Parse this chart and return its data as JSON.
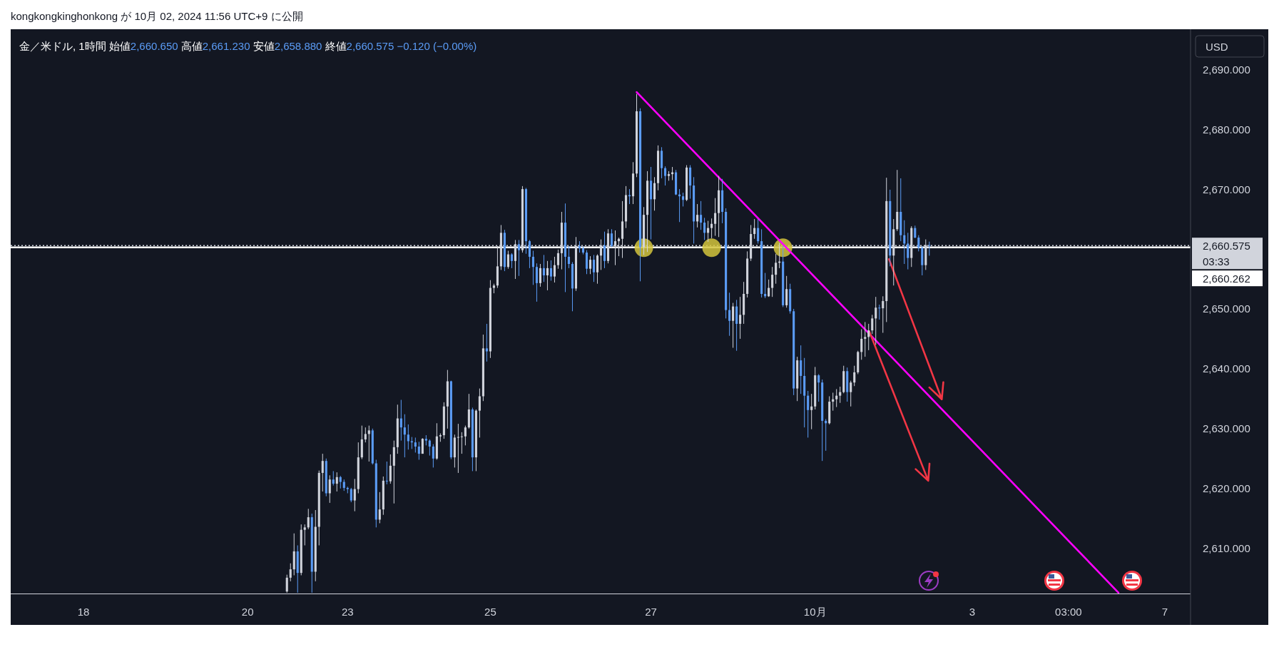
{
  "chart_data": {
    "type": "candlestick",
    "title": "金／米ドル, 1時間  始値2,660.650  高値2,661.230  安値2,658.880  終値2,660.575  −0.120 (−0.00%)",
    "ylabel": "USD",
    "annotations": [
      "kongkongkinghonkong が 10月 02, 2024 11:56 UTC+9 に公開",
      "03:33"
    ],
    "categories": [
      "18",
      null,
      null,
      null,
      null,
      null,
      null,
      null,
      null,
      null,
      null,
      null,
      null,
      null,
      null,
      null,
      null,
      null,
      null,
      null,
      null,
      null,
      null,
      null,
      null,
      null,
      null,
      null,
      null,
      null,
      null,
      null,
      null,
      null,
      null,
      null,
      null,
      null,
      null,
      null,
      null,
      null,
      null,
      null,
      null,
      null,
      "20",
      null,
      null,
      null,
      null,
      null,
      null,
      null,
      null,
      null,
      null,
      null,
      null,
      null,
      null,
      null,
      null,
      null,
      null,
      null,
      null,
      null,
      null,
      null,
      null,
      null,
      null,
      null,
      "23",
      null,
      null,
      null,
      null,
      null,
      null,
      null,
      null,
      null,
      null,
      null,
      null,
      null,
      null,
      null,
      null,
      null,
      null,
      null,
      null,
      null,
      null,
      null,
      null,
      null,
      null,
      null,
      null,
      null,
      null,
      null,
      null,
      null,
      null,
      null,
      null,
      null,
      null,
      null,
      "25",
      null,
      null,
      null,
      null,
      null,
      null,
      null,
      null,
      null,
      null,
      null,
      null,
      null,
      null,
      null,
      null,
      null,
      null,
      null,
      null,
      null,
      null,
      null,
      null,
      null,
      null,
      null,
      null,
      null,
      null,
      null,
      null,
      null,
      null,
      null,
      null,
      null,
      null,
      null,
      null,
      null,
      null,
      null,
      null,
      "27",
      null,
      null,
      null,
      null,
      null,
      null,
      null,
      null,
      null,
      null,
      null,
      null,
      null,
      null,
      null,
      null,
      null,
      null,
      null,
      null,
      null,
      null,
      null,
      null,
      null,
      null,
      null,
      null,
      null,
      null,
      null,
      null,
      null,
      null,
      null,
      null,
      null,
      null,
      null,
      null,
      null,
      null,
      null,
      null,
      null,
      "10月",
      null,
      null,
      null,
      null,
      null,
      null,
      null,
      null,
      null,
      null,
      null,
      null,
      null,
      null,
      null,
      null,
      null,
      null,
      null,
      null,
      null,
      null,
      null,
      null,
      null,
      null,
      null,
      null,
      null,
      null,
      null,
      null,
      null,
      null,
      null,
      null,
      null,
      null,
      null,
      null,
      null,
      null,
      null,
      "3",
      null,
      null,
      null,
      null,
      null,
      null,
      null,
      null,
      null,
      null,
      null,
      null,
      null,
      null,
      null,
      null,
      null,
      null,
      null,
      null,
      null,
      null,
      null,
      null,
      null,
      null,
      "03:00",
      null,
      null,
      null,
      null,
      null,
      null,
      null,
      null,
      null,
      null,
      null,
      null,
      null,
      null,
      null,
      null,
      null,
      null,
      null,
      null,
      null,
      null,
      null,
      null,
      null,
      null,
      "7"
    ],
    "ylim": [
      2602.4,
      2696.4
    ],
    "yticks": [
      {
        "value": 2610,
        "label": "2,610.000"
      },
      {
        "value": 2620,
        "label": "2,620.000"
      },
      {
        "value": 2630,
        "label": "2,630.000"
      },
      {
        "value": 2640,
        "label": "2,640.000"
      },
      {
        "value": 2650,
        "label": "2,650.000"
      },
      {
        "value": 2670,
        "label": "2,670.000"
      },
      {
        "value": 2680,
        "label": "2,680.000"
      },
      {
        "value": 2690,
        "label": "2,690.000"
      }
    ],
    "ref_lines": [
      {
        "axis": "y",
        "value": 2660.575,
        "label": "2,660.575",
        "color": "#d1d4dc",
        "line_style": "dotted"
      },
      {
        "axis": "y",
        "value": 2660.262,
        "label": "2,660.262",
        "color": "#ffffff",
        "line_style": "solid"
      }
    ],
    "series": [
      {
        "type": "line",
        "color": "#ff00ff",
        "line_style": "solid",
        "values": [
          null,
          null,
          null,
          null,
          null,
          null,
          null,
          null,
          null,
          null,
          null,
          null,
          null,
          null,
          null,
          null,
          null,
          null,
          null,
          null,
          null,
          null,
          null,
          null,
          null,
          null,
          null,
          null,
          null,
          null,
          null,
          null,
          null,
          null,
          null,
          null,
          null,
          null,
          null,
          null,
          null,
          null,
          null,
          null,
          null,
          null,
          null,
          null,
          null,
          null,
          null,
          null,
          null,
          null,
          null,
          null,
          null,
          null,
          null,
          null,
          null,
          null,
          null,
          null,
          null,
          null,
          null,
          null,
          null,
          null,
          null,
          null,
          null,
          null,
          null,
          null,
          null,
          null,
          null,
          null,
          null,
          null,
          null,
          null,
          null,
          null,
          null,
          null,
          null,
          null,
          null,
          null,
          null,
          null,
          null,
          null,
          null,
          null,
          null,
          null,
          null,
          null,
          null,
          null,
          null,
          null,
          null,
          null,
          null,
          null,
          null,
          null,
          null,
          null,
          null,
          null,
          null,
          null,
          null,
          null,
          null,
          null,
          null,
          null,
          null,
          null,
          null,
          null,
          null,
          null,
          null,
          null,
          null,
          null,
          null,
          null,
          null,
          null,
          null,
          null,
          null,
          null,
          null,
          null,
          null,
          null,
          null,
          null,
          null,
          null,
          null,
          null,
          null,
          null,
          null,
          2686.2,
          null,
          null,
          null,
          null,
          null,
          null,
          null,
          null,
          null,
          null,
          null,
          null,
          null,
          null,
          null,
          null,
          null,
          null,
          null,
          null,
          null,
          null,
          null,
          null,
          null,
          null,
          null,
          null,
          null,
          null,
          null,
          null,
          null,
          null,
          null,
          null,
          null,
          null,
          null,
          null,
          null,
          null,
          null,
          null,
          null,
          null,
          null,
          null,
          null,
          null,
          null,
          null,
          null,
          null,
          null,
          null,
          null,
          null,
          null,
          null,
          null,
          null,
          null,
          null,
          null,
          null,
          null,
          null,
          null,
          null,
          null,
          null,
          null,
          null,
          null,
          null,
          null,
          null,
          null,
          null,
          null,
          null,
          null,
          null,
          null,
          null,
          null,
          null,
          null,
          null,
          null,
          null,
          null,
          null,
          null,
          null,
          null,
          null,
          null,
          null,
          null,
          null,
          null,
          null,
          null,
          null,
          null,
          null,
          null,
          null,
          null,
          null,
          null,
          null,
          null,
          null,
          null,
          null,
          null,
          null,
          null,
          null,
          null,
          null,
          null,
          null,
          null,
          null,
          null,
          null,
          null,
          null,
          null,
          null,
          2602.6,
          null,
          null,
          null,
          null,
          null,
          null,
          null,
          null,
          null,
          null,
          null,
          null,
          null
        ]
      },
      {
        "type": "scatter",
        "color": "#d4c43c",
        "marker": "circle",
        "values": [
          null,
          null,
          null,
          null,
          null,
          null,
          null,
          null,
          null,
          null,
          null,
          null,
          null,
          null,
          null,
          null,
          null,
          null,
          null,
          null,
          null,
          null,
          null,
          null,
          null,
          null,
          null,
          null,
          null,
          null,
          null,
          null,
          null,
          null,
          null,
          null,
          null,
          null,
          null,
          null,
          null,
          null,
          null,
          null,
          null,
          null,
          null,
          null,
          null,
          null,
          null,
          null,
          null,
          null,
          null,
          null,
          null,
          null,
          null,
          null,
          null,
          null,
          null,
          null,
          null,
          null,
          null,
          null,
          null,
          null,
          null,
          null,
          null,
          null,
          null,
          null,
          null,
          null,
          null,
          null,
          null,
          null,
          null,
          null,
          null,
          null,
          null,
          null,
          null,
          null,
          null,
          null,
          null,
          null,
          null,
          null,
          null,
          null,
          null,
          null,
          null,
          null,
          null,
          null,
          null,
          null,
          null,
          null,
          null,
          null,
          null,
          null,
          null,
          null,
          null,
          null,
          null,
          null,
          null,
          null,
          null,
          null,
          null,
          null,
          null,
          null,
          null,
          null,
          null,
          null,
          null,
          null,
          null,
          null,
          null,
          null,
          null,
          null,
          null,
          null,
          null,
          null,
          null,
          null,
          null,
          null,
          null,
          null,
          null,
          null,
          null,
          null,
          null,
          null,
          null,
          null,
          null,
          2660.2,
          null,
          null,
          null,
          null,
          null,
          null,
          null,
          null,
          null,
          null,
          null,
          null,
          null,
          null,
          null,
          null,
          null,
          null,
          2660.2,
          null,
          null,
          null,
          null,
          null,
          null,
          null,
          null,
          null,
          null,
          null,
          null,
          null,
          null,
          null,
          null,
          null,
          null,
          null,
          2660.2,
          null,
          null,
          null,
          null,
          null,
          null,
          null,
          null,
          null,
          null,
          null,
          null,
          null,
          null,
          null,
          null,
          null,
          null,
          null,
          null,
          null,
          null,
          null,
          null,
          null,
          null,
          null,
          null,
          null,
          null,
          null,
          null,
          null,
          null,
          null,
          null,
          null,
          null,
          null,
          null,
          null,
          null,
          null,
          null,
          null,
          null,
          null,
          null,
          null,
          null,
          null,
          null,
          null,
          null,
          null,
          null,
          null,
          null,
          null,
          null,
          null,
          null,
          null,
          null,
          null,
          null,
          null,
          null,
          null,
          null,
          null,
          null,
          null,
          null,
          null,
          null,
          null,
          null,
          null,
          null,
          null,
          null,
          null,
          null,
          null,
          null,
          null,
          null,
          null,
          null,
          null,
          null,
          null,
          null,
          null,
          null,
          null,
          null,
          null,
          null,
          null,
          null,
          null,
          null,
          null,
          null,
          null
        ]
      }
    ],
    "colors": [
      null,
      null,
      null,
      null,
      null,
      null,
      null,
      null,
      null,
      null,
      null,
      null,
      null,
      null,
      null,
      null,
      null,
      null,
      null,
      null,
      null,
      null,
      null,
      null,
      null,
      null,
      null,
      null,
      null,
      null,
      null,
      null,
      null,
      null,
      null,
      null,
      null,
      null,
      null,
      null,
      null,
      null,
      null,
      null,
      null,
      null,
      null,
      null,
      null,
      null,
      null,
      null,
      null,
      null,
      null,
      null,
      null,
      "#d1d4dc",
      "#d1d4dc",
      "#d1d4dc",
      "#5b9cf6",
      "#d1d4dc",
      "#d1d4dc",
      "#d1d4dc",
      "#5b9cf6",
      "#d1d4dc",
      "#d1d4dc",
      "#d1d4dc",
      "#5b9cf6",
      "#d1d4dc",
      "#5b9cf6",
      "#d1d4dc",
      "#5b9cf6",
      "#5b9cf6",
      "#5b9cf6",
      "#5b9cf6",
      "#d1d4dc",
      "#d1d4dc",
      "#d1d4dc",
      "#d1d4dc",
      "#d1d4dc",
      "#5b9cf6",
      "#5b9cf6",
      "#d1d4dc",
      "#d1d4dc",
      "#5b9cf6",
      "#d1d4dc",
      "#d1d4dc",
      "#d1d4dc",
      "#5b9cf6",
      "#5b9cf6",
      "#5b9cf6",
      "#5b9cf6",
      "#5b9cf6",
      "#5b9cf6",
      "#d1d4dc",
      "#5b9cf6",
      "#5b9cf6",
      "#5b9cf6",
      "#d1d4dc",
      "#d1d4dc",
      "#d1d4dc",
      "#d1d4dc",
      "#5b9cf6",
      "#d1d4dc",
      "#d1d4dc",
      "#d1d4dc",
      "#d1d4dc",
      "#d1d4dc",
      "#5b9cf6",
      "#d1d4dc",
      "#d1d4dc",
      "#d1d4dc",
      "#5b9cf6",
      "#d1d4dc",
      "#d1d4dc",
      "#d1d4dc",
      "#d1d4dc",
      "#5b9cf6",
      "#d1d4dc",
      "#5b9cf6",
      "#d1d4dc",
      "#5b9cf6",
      "#d1d4dc",
      "#5b9cf6",
      "#5b9cf6",
      "#5b9cf6",
      "#5b9cf6",
      "#d1d4dc",
      "#5b9cf6",
      "#d1d4dc",
      "#5b9cf6",
      "#d1d4dc",
      "#d1d4dc",
      "#d1d4dc",
      "#5b9cf6",
      "#5b9cf6",
      "#5b9cf6",
      "#d1d4dc",
      "#5b9cf6",
      "#5b9cf6",
      "#5b9cf6",
      "#d1d4dc",
      "#5b9cf6",
      "#d1d4dc",
      "#d1d4dc",
      "#5b9cf6",
      "#d1d4dc",
      "#5b9cf6",
      "#d1d4dc",
      "#d1d4dc",
      "#d1d4dc",
      "#d1d4dc",
      "#5b9cf6",
      "#d1d4dc",
      "#d1d4dc",
      "#5b9cf6",
      "#d1d4dc",
      "#d1d4dc",
      "#5b9cf6",
      "#d1d4dc",
      "#d1d4dc",
      "#5b9cf6",
      "#5b9cf6",
      "#d1d4dc",
      "#d1d4dc",
      "#5b9cf6",
      "#5b9cf6",
      "#5b9cf6",
      "#d1d4dc",
      "#5b9cf6",
      "#5b9cf6",
      "#d1d4dc",
      "#5b9cf6",
      "#5b9cf6",
      "#d1d4dc",
      "#d1d4dc",
      "#d1d4dc",
      "#d1d4dc",
      "#5b9cf6",
      "#5b9cf6",
      "#5b9cf6",
      "#d1d4dc",
      "#5b9cf6",
      "#d1d4dc",
      "#d1d4dc",
      "#d1d4dc",
      "#d1d4dc",
      "#d1d4dc",
      "#5b9cf6",
      "#5b9cf6",
      "#5b9cf6",
      "#d1d4dc",
      "#d1d4dc",
      "#d1d4dc",
      "#d1d4dc",
      "#5b9cf6",
      "#d1d4dc",
      "#5b9cf6",
      "#5b9cf6",
      "#d1d4dc",
      "#5b9cf6",
      "#5b9cf6",
      "#5b9cf6",
      "#d1d4dc",
      "#d1d4dc",
      "#5b9cf6",
      "#5b9cf6",
      "#5b9cf6",
      "#d1d4dc",
      "#d1d4dc",
      "#d1d4dc",
      "#d1d4dc",
      "#d1d4dc",
      "#5b9cf6",
      "#d1d4dc",
      "#d1d4dc",
      "#d1d4dc",
      "#d1d4dc",
      "#d1d4dc",
      "#d1d4dc",
      "#d1d4dc",
      "#d1d4dc",
      "#5b9cf6",
      "#d1d4dc",
      "#d1d4dc",
      "#5b9cf6",
      "#d1d4dc",
      "#d1d4dc",
      "#5b9cf6",
      "#5b9cf6",
      "#5b9cf6",
      "#d1d4dc",
      "#5b9cf6",
      "#5b9cf6",
      "#5b9cf6",
      "#d1d4dc",
      "#5b9cf6",
      null,
      null,
      null,
      null,
      null,
      null,
      null,
      null,
      null,
      null,
      null,
      null,
      null,
      null,
      null,
      null,
      null,
      null,
      null,
      null,
      null,
      null,
      null,
      null,
      null,
      null,
      null,
      null,
      null,
      null,
      null,
      null,
      null,
      null,
      null,
      null,
      null,
      null,
      null,
      null,
      null,
      null,
      null,
      null,
      null,
      null,
      null,
      null,
      null,
      null,
      null,
      null,
      null,
      null,
      null,
      null,
      null,
      null,
      null,
      null,
      null,
      null,
      null,
      null,
      null,
      null
    ],
    "ohlc": [
      null,
      null,
      null,
      null,
      null,
      null,
      null,
      null,
      null,
      null,
      null,
      null,
      null,
      null,
      null,
      null,
      null,
      null,
      null,
      null,
      null,
      null,
      null,
      null,
      null,
      null,
      null,
      null,
      null,
      null,
      null,
      null,
      null,
      null,
      null,
      null,
      null,
      null,
      null,
      null,
      null,
      null,
      null,
      null,
      null,
      null,
      null,
      null,
      null,
      null,
      null,
      null,
      null,
      null,
      null,
      null,
      null,
      [
        2602.8,
        2605.6,
        2602.6,
        2605.1
      ],
      [
        2605.1,
        2607.5,
        2604.5,
        2606.5
      ],
      [
        2606.5,
        2612.5,
        2605.5,
        2609.5
      ],
      [
        2609.5,
        2610.5,
        2602.6,
        2605.9
      ],
      [
        2605.9,
        2614,
        2605.5,
        2613.1
      ],
      [
        2613.1,
        2614,
        2610.5,
        2613.5
      ],
      [
        2613.5,
        2616.6,
        2613.2,
        2615.2
      ],
      [
        2615.2,
        2615.8,
        2602.6,
        2606.1
      ],
      [
        2606.1,
        2616.4,
        2604.5,
        2613.6
      ],
      [
        2613.6,
        2623,
        2610.5,
        2622.6
      ],
      [
        2622.6,
        2625.8,
        2619.5,
        2624.6
      ],
      [
        2624.6,
        2625,
        2618.7,
        2619.2
      ],
      [
        2619.2,
        2622.2,
        2617.6,
        2621.5
      ],
      [
        2621.5,
        2622.9,
        2620.5,
        2620.8
      ],
      [
        2620.8,
        2622.7,
        2619.5,
        2621.9
      ],
      [
        2621.9,
        2622.1,
        2620,
        2621.1
      ],
      [
        2621.1,
        2621.5,
        2619.6,
        2620.1
      ],
      [
        2620.1,
        2620.3,
        2619.2,
        2619.9
      ],
      [
        2619.9,
        2620.1,
        2617.7,
        2618
      ],
      [
        2618,
        2621.6,
        2616.2,
        2619.9
      ],
      [
        2619.9,
        2627.7,
        2619.2,
        2625.2
      ],
      [
        2625.2,
        2630.5,
        2624.9,
        2628.2
      ],
      [
        2628.2,
        2630.2,
        2627.7,
        2629.1
      ],
      [
        2629.1,
        2630.5,
        2624.5,
        2629.7
      ],
      [
        2629.7,
        2630,
        2624,
        2624.2
      ],
      [
        2624.2,
        2624.8,
        2613.5,
        2614.8
      ],
      [
        2614.8,
        2619.4,
        2614.2,
        2616.5
      ],
      [
        2616.5,
        2622,
        2615.6,
        2621.3
      ],
      [
        2621.3,
        2624.5,
        2620.7,
        2621.2
      ],
      [
        2621.2,
        2625.7,
        2620.8,
        2623.8
      ],
      [
        2623.8,
        2628,
        2617.5,
        2626.9
      ],
      [
        2626.9,
        2634,
        2625.8,
        2631.7
      ],
      [
        2631.7,
        2634.8,
        2628,
        2630.2
      ],
      [
        2630.2,
        2632.4,
        2625.2,
        2629
      ],
      [
        2629,
        2630.7,
        2626.5,
        2627.9
      ],
      [
        2627.9,
        2628.6,
        2626.6,
        2627.7
      ],
      [
        2627.7,
        2628.5,
        2626,
        2627
      ],
      [
        2627,
        2627.8,
        2624.8,
        2625.8
      ],
      [
        2625.8,
        2628.4,
        2625.8,
        2628.3
      ],
      [
        2628.3,
        2628.9,
        2627.2,
        2628
      ],
      [
        2628,
        2628.2,
        2625.5,
        2627
      ],
      [
        2627,
        2627.4,
        2623.5,
        2625
      ],
      [
        2625,
        2630.9,
        2624.8,
        2628.7
      ],
      [
        2628.7,
        2629.2,
        2627.8,
        2628.9
      ],
      [
        2628.9,
        2634.4,
        2628.3,
        2633.7
      ],
      [
        2633.7,
        2639.8,
        2630,
        2637.9
      ],
      [
        2637.9,
        2638,
        2624.9,
        2625.2
      ],
      [
        2625.2,
        2629,
        2623.5,
        2628.5
      ],
      [
        2628.5,
        2630.8,
        2622.6,
        2628.6
      ],
      [
        2628.6,
        2629.4,
        2625.8,
        2628.7
      ],
      [
        2628.7,
        2630.5,
        2627.2,
        2630.2
      ],
      [
        2630.2,
        2635.8,
        2630,
        2633.2
      ],
      [
        2633.2,
        2633.5,
        2622.9,
        2625.2
      ],
      [
        2625.2,
        2633.2,
        2622.9,
        2633
      ],
      [
        2633,
        2636.7,
        2628.5,
        2635.4
      ],
      [
        2635.4,
        2645.7,
        2634.6,
        2643.4
      ],
      [
        2643.4,
        2647.5,
        2641.2,
        2642.9
      ],
      [
        2642.9,
        2654.8,
        2641.8,
        2653.5
      ],
      [
        2653.5,
        2654.2,
        2652.6,
        2653.9
      ],
      [
        2653.9,
        2660.5,
        2653.5,
        2657.1
      ],
      [
        2657.1,
        2664,
        2656.5,
        2662.7
      ],
      [
        2662.7,
        2663.2,
        2656.3,
        2657
      ],
      [
        2657,
        2659.7,
        2656.7,
        2659.1
      ],
      [
        2659.1,
        2659.3,
        2656.8,
        2658
      ],
      [
        2658,
        2661.5,
        2655,
        2660.8
      ],
      [
        2660.8,
        2661.5,
        2655.5,
        2659.8
      ],
      [
        2659.8,
        2670.5,
        2659.4,
        2670
      ],
      [
        2670,
        2670.2,
        2659.2,
        2661.3
      ],
      [
        2661.3,
        2661.5,
        2656.8,
        2658.7
      ],
      [
        2658.7,
        2659.7,
        2654,
        2657
      ],
      [
        2657,
        2657.6,
        2651.2,
        2654.3
      ],
      [
        2654.3,
        2657.5,
        2653.7,
        2656.8
      ],
      [
        2656.8,
        2659,
        2654.5,
        2655.6
      ],
      [
        2655.6,
        2658,
        2653.1,
        2656.8
      ],
      [
        2656.8,
        2658.1,
        2654.7,
        2655.4
      ],
      [
        2655.4,
        2658.7,
        2654.4,
        2657.3
      ],
      [
        2657.3,
        2659.9,
        2656.7,
        2659.3
      ],
      [
        2659.3,
        2666.2,
        2656.6,
        2664.4
      ],
      [
        2664.4,
        2667.6,
        2652.8,
        2658.7
      ],
      [
        2658.7,
        2660.5,
        2656.8,
        2657.5
      ],
      [
        2657.5,
        2657.8,
        2649.6,
        2653.4
      ],
      [
        2653.4,
        2662,
        2653,
        2660.5
      ],
      [
        2660.5,
        2661.3,
        2659.4,
        2660.1
      ],
      [
        2660.1,
        2660.4,
        2659.1,
        2659.4
      ],
      [
        2659.4,
        2659.8,
        2655.8,
        2656.7
      ],
      [
        2656.7,
        2658.8,
        2655.8,
        2658.2
      ],
      [
        2658.2,
        2659,
        2654.5,
        2656.1
      ],
      [
        2656.1,
        2659.1,
        2654.2,
        2658.9
      ],
      [
        2658.9,
        2661.6,
        2656.5,
        2660.6
      ],
      [
        2660.6,
        2662.9,
        2656.8,
        2658
      ],
      [
        2658,
        2663.3,
        2657.6,
        2662.6
      ],
      [
        2662.6,
        2663.3,
        2660.3,
        2660.5
      ],
      [
        2660.5,
        2663.1,
        2657.3,
        2661.3
      ],
      [
        2661.3,
        2661.9,
        2658.8,
        2661.7
      ],
      [
        2661.7,
        2668,
        2658.5,
        2664.6
      ],
      [
        2664.6,
        2670.5,
        2663.5,
        2669
      ],
      [
        2669,
        2670,
        2667.5,
        2668.8
      ],
      [
        2668.8,
        2674.5,
        2667.5,
        2672.6
      ],
      [
        2672.6,
        2685.9,
        2672,
        2683
      ],
      [
        2683,
        2683.5,
        2654.6,
        2660.3
      ],
      [
        2660.3,
        2667,
        2659,
        2665.7
      ],
      [
        2665.7,
        2673,
        2659.5,
        2671.4
      ],
      [
        2671.4,
        2673.7,
        2661.6,
        2668.3
      ],
      [
        2668.3,
        2672,
        2666.4,
        2671
      ],
      [
        2671,
        2677.3,
        2669.8,
        2676.4
      ],
      [
        2676.4,
        2677,
        2671.8,
        2673.5
      ],
      [
        2673.5,
        2673.8,
        2670.6,
        2672.2
      ],
      [
        2672.2,
        2673,
        2671.4,
        2672.5
      ],
      [
        2672.5,
        2673.7,
        2671.5,
        2672.8
      ],
      [
        2672.8,
        2673.2,
        2669,
        2669.1
      ],
      [
        2669.1,
        2670,
        2664.5,
        2668.8
      ],
      [
        2668.8,
        2669.4,
        2667.1,
        2668.2
      ],
      [
        2668.2,
        2674,
        2668,
        2673.6
      ],
      [
        2673.6,
        2674,
        2668.4,
        2670.6
      ],
      [
        2670.6,
        2672,
        2660.9,
        2664.6
      ],
      [
        2664.6,
        2667.5,
        2663.6,
        2665.7
      ],
      [
        2665.7,
        2668,
        2663.2,
        2664.4
      ],
      [
        2664.4,
        2665.2,
        2661.5,
        2662.7
      ],
      [
        2662.7,
        2664.7,
        2661.2,
        2663.5
      ],
      [
        2663.5,
        2665.1,
        2661.8,
        2664.2
      ],
      [
        2664.2,
        2668.5,
        2662.2,
        2666
      ],
      [
        2666,
        2672.2,
        2662,
        2669.8
      ],
      [
        2669.8,
        2671.7,
        2664.3,
        2666.2
      ],
      [
        2666.2,
        2666.8,
        2648.4,
        2649.8
      ],
      [
        2649.8,
        2652.7,
        2645.5,
        2648
      ],
      [
        2648,
        2651,
        2643.5,
        2650.4
      ],
      [
        2650.4,
        2651.5,
        2643,
        2647.5
      ],
      [
        2647.5,
        2652,
        2645,
        2649
      ],
      [
        2649,
        2654.5,
        2647.5,
        2652.5
      ],
      [
        2652.5,
        2659.6,
        2651.9,
        2658.4
      ],
      [
        2658.4,
        2664,
        2658,
        2662.5
      ],
      [
        2662.5,
        2665,
        2661.7,
        2663.5
      ],
      [
        2663.5,
        2665,
        2660.9,
        2661.3
      ],
      [
        2661.3,
        2663.3,
        2651.9,
        2652.5
      ],
      [
        2652.5,
        2656,
        2651.8,
        2652.1
      ],
      [
        2652.1,
        2654.9,
        2652,
        2653.5
      ],
      [
        2653.5,
        2657,
        2652,
        2655.7
      ],
      [
        2655.7,
        2659.2,
        2654.2,
        2657.7
      ],
      [
        2657.7,
        2661,
        2656.8,
        2657.9
      ],
      [
        2657.9,
        2660.5,
        2650.3,
        2650.6
      ],
      [
        2650.6,
        2655.5,
        2650.2,
        2653.3
      ],
      [
        2653.3,
        2654.2,
        2649.2,
        2649.6
      ],
      [
        2649.6,
        2650,
        2635.6,
        2636.7
      ],
      [
        2636.7,
        2642,
        2634.6,
        2641.4
      ],
      [
        2641.4,
        2643.9,
        2635.8,
        2638.8
      ],
      [
        2638.8,
        2641.8,
        2630.2,
        2635.5
      ],
      [
        2635.5,
        2636.3,
        2628.5,
        2633.1
      ],
      [
        2633.1,
        2635.8,
        2629.9,
        2633.7
      ],
      [
        2633.7,
        2640.3,
        2633.2,
        2638.9
      ],
      [
        2638.9,
        2639.1,
        2634.5,
        2637.7
      ],
      [
        2637.7,
        2638.2,
        2624.6,
        2631.3
      ],
      [
        2631.3,
        2631.6,
        2626.3,
        2630.9
      ],
      [
        2630.9,
        2635.4,
        2630.7,
        2634.5
      ],
      [
        2634.5,
        2636,
        2633,
        2634.9
      ],
      [
        2634.9,
        2636.6,
        2633.6,
        2635.5
      ],
      [
        2635.5,
        2637,
        2634.3,
        2636.1
      ],
      [
        2636.1,
        2640.5,
        2635.9,
        2639.6
      ],
      [
        2639.6,
        2640.2,
        2634.5,
        2636.1
      ],
      [
        2636.1,
        2638,
        2633.7,
        2637.7
      ],
      [
        2637.7,
        2640.5,
        2637.1,
        2639.4
      ],
      [
        2639.4,
        2643,
        2639.1,
        2642.8
      ],
      [
        2642.8,
        2646.6,
        2641.5,
        2645
      ],
      [
        2645,
        2647.8,
        2642,
        2645.3
      ],
      [
        2645.3,
        2647.5,
        2643.1,
        2646.4
      ],
      [
        2646.4,
        2649,
        2645.8,
        2648.4
      ],
      [
        2648.4,
        2652,
        2644,
        2650.2
      ],
      [
        2650.2,
        2650.7,
        2648.2,
        2650.1
      ],
      [
        2650.1,
        2652.1,
        2646,
        2651.3
      ],
      [
        2651.3,
        2671.9,
        2647.8,
        2668
      ],
      [
        2668,
        2669.9,
        2657.1,
        2658.9
      ],
      [
        2658.9,
        2665,
        2653.9,
        2663.3
      ],
      [
        2663.3,
        2673.2,
        2663,
        2666.2
      ],
      [
        2666.2,
        2671.8,
        2661.3,
        2662.3
      ],
      [
        2662.3,
        2664.8,
        2657.5,
        2660.9
      ],
      [
        2660.9,
        2662.7,
        2656.6,
        2658.5
      ],
      [
        2658.5,
        2663.8,
        2657,
        2663.5
      ],
      [
        2663.5,
        2663.9,
        2661.8,
        2661.9
      ],
      [
        2661.9,
        2662.3,
        2659.6,
        2660.2
      ],
      [
        2660.2,
        2660.5,
        2655.6,
        2657.3
      ],
      [
        2657.3,
        2661.6,
        2656.5,
        2660.65
      ],
      [
        2660.65,
        2661.23,
        2658.88,
        2660.575
      ],
      null,
      null,
      null,
      null,
      null,
      null,
      null,
      null,
      null,
      null,
      null,
      null,
      null,
      null,
      null,
      null,
      null,
      null,
      null,
      null,
      null,
      null,
      null,
      null,
      null,
      null,
      null,
      null,
      null,
      null,
      null,
      null,
      null,
      null,
      null,
      null,
      null,
      null,
      null,
      null,
      null,
      null,
      null,
      null,
      null,
      null,
      null,
      null,
      null,
      null,
      null,
      null,
      null,
      null,
      null,
      null,
      null,
      null,
      null,
      null,
      null,
      null,
      null,
      null,
      null,
      null
    ]
  }
}
